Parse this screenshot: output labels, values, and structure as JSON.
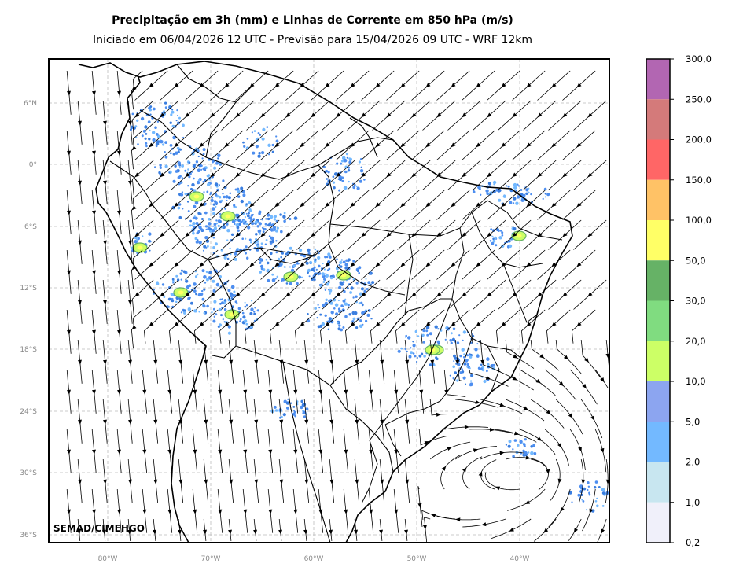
{
  "title": "Precipitação em 3h (mm) e Linhas de Corrente em 850 hPa (m/s)",
  "subtitle": "Iniciado em 06/04/2026 12 UTC - Previsão para 15/04/2026 09 UTC - WRF 12km",
  "credit": "SEMAD/CIMEHGO",
  "lat_labels": [
    "6°N",
    "0°",
    "6°S",
    "12°S",
    "18°S",
    "24°S",
    "30°S",
    "36°S"
  ],
  "lon_labels": [
    "80°W",
    "70°W",
    "60°W",
    "50°W",
    "40°W"
  ],
  "colorbar": {
    "labels": [
      "300,0",
      "250,0",
      "200,0",
      "150,0",
      "100,0",
      "50,0",
      "30,0",
      "20,0",
      "10,0",
      "5,0",
      "2,0",
      "1,0",
      "0,2"
    ],
    "colors": [
      "#b266b2",
      "#d47a7a",
      "#ff6666",
      "#ffc266",
      "#ffff66",
      "#66b266",
      "#80dc80",
      "#ccff66",
      "#8ca5f0",
      "#73b9ff",
      "#c8e6f0",
      "#f0f0fa"
    ]
  }
}
